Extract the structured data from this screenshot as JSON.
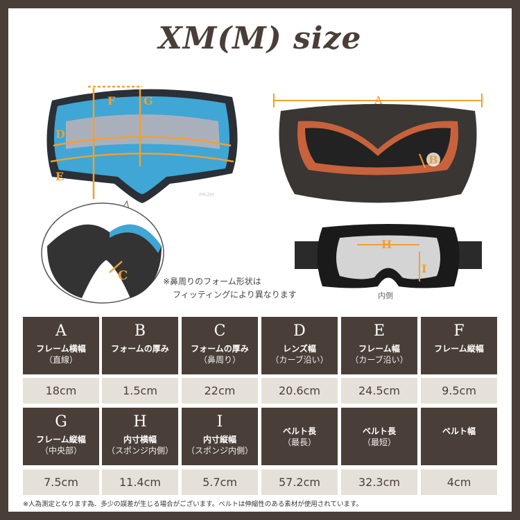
{
  "title": "XM(M) size",
  "diagram_labels": [
    "A",
    "B",
    "C",
    "D",
    "E",
    "F",
    "G",
    "H",
    "I"
  ],
  "lens_brand": "PRIZM",
  "nose_note": {
    "line1": "※鼻周りのフォーム形状は",
    "line2": "フィッティングにより異なります"
  },
  "inside_label": "内側",
  "colors": {
    "frame": "#4a3f38",
    "value_bg": "#e6e1d8",
    "accent": "#f0a030"
  },
  "table": {
    "rows": [
      [
        {
          "letter": "A",
          "label": "フレーム横幅",
          "sub": "（直線）",
          "value": "18cm"
        },
        {
          "letter": "B",
          "label": "フォームの厚み",
          "sub": "",
          "value": "1.5cm"
        },
        {
          "letter": "C",
          "label": "フォームの厚み",
          "sub": "（鼻周り）",
          "value": "22cm"
        },
        {
          "letter": "D",
          "label": "レンズ幅",
          "sub": "（カーブ沿い）",
          "value": "20.6cm"
        },
        {
          "letter": "E",
          "label": "フレーム幅",
          "sub": "（カーブ沿い）",
          "value": "24.5cm"
        },
        {
          "letter": "F",
          "label": "フレーム縦幅",
          "sub": "",
          "value": "9.5cm"
        }
      ],
      [
        {
          "letter": "G",
          "label": "フレーム縦幅",
          "sub": "（中央部）",
          "value": "7.5cm"
        },
        {
          "letter": "H",
          "label": "内寸横幅",
          "sub": "（スポンジ内側）",
          "value": "11.4cm"
        },
        {
          "letter": "I",
          "label": "内寸縦幅",
          "sub": "（スポンジ内側）",
          "value": "5.7cm"
        },
        {
          "letter": "",
          "label": "ベルト長",
          "sub": "（最長）",
          "value": "57.2cm"
        },
        {
          "letter": "",
          "label": "ベルト長",
          "sub": "（最短）",
          "value": "32.3cm"
        },
        {
          "letter": "",
          "label": "ベルト幅",
          "sub": "",
          "value": "4cm"
        }
      ]
    ]
  },
  "footnote": "※人為測定となります為、多少の誤差が生じる場合がございます。ベルトは伸縮性のある素材が使用されています。"
}
